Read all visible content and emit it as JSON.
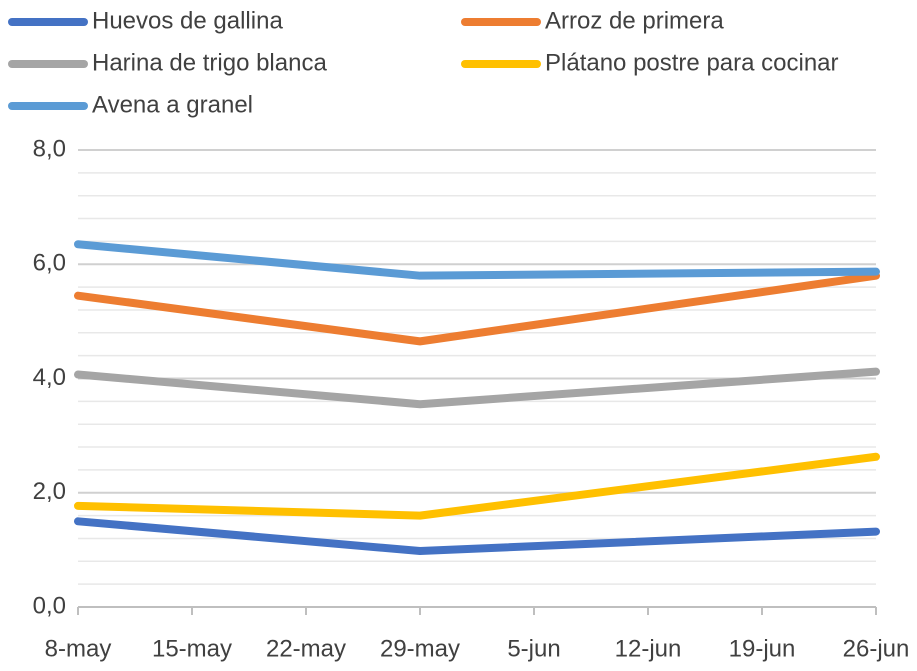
{
  "chart_data": {
    "type": "line",
    "x": [
      "8-may",
      "29-may",
      "26-jun"
    ],
    "xticks": [
      "8-may",
      "15-may",
      "22-may",
      "29-may",
      "5-jun",
      "12-jun",
      "19-jun",
      "26-jun"
    ],
    "series": [
      {
        "name": "Huevos de gallina",
        "color": "#4472c4",
        "values": [
          1.5,
          0.98,
          1.32
        ]
      },
      {
        "name": "Arroz de primera",
        "color": "#ed7d31",
        "values": [
          5.45,
          4.65,
          5.8
        ]
      },
      {
        "name": "Harina de trigo blanca",
        "color": "#a5a5a5",
        "values": [
          4.07,
          3.55,
          4.12
        ]
      },
      {
        "name": "Plátano postre para cocinar",
        "color": "#ffc000",
        "values": [
          1.77,
          1.6,
          2.63
        ]
      },
      {
        "name": "Avena a granel",
        "color": "#5b9bd5",
        "values": [
          6.35,
          5.8,
          5.87
        ]
      }
    ],
    "ylim": [
      0,
      8
    ],
    "yticks": [
      {
        "value": 0,
        "label": "0,0"
      },
      {
        "value": 2,
        "label": "2,0"
      },
      {
        "value": 4,
        "label": "4,0"
      },
      {
        "value": 6,
        "label": "6,0"
      },
      {
        "value": 8,
        "label": "8,0"
      }
    ],
    "grid": true,
    "legend": "top"
  }
}
